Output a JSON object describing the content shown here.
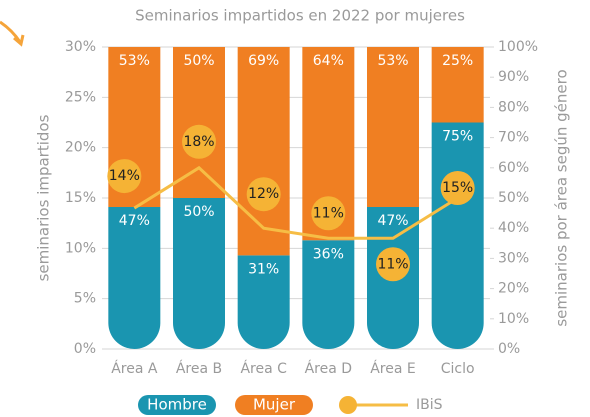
{
  "chart_data": {
    "type": "bar",
    "title": "Seminarios impartidos en 2022 por mujeres",
    "y_label": "seminarios impartidos",
    "y2_label": "seminarios por área según género",
    "categories": [
      "Área A",
      "Área B",
      "Área C",
      "Área D",
      "Área E",
      "Ciclo"
    ],
    "ylim": [
      0,
      30
    ],
    "yticks": [
      {
        "value": 0,
        "label": "0%"
      },
      {
        "value": 5,
        "label": "5%"
      },
      {
        "value": 10,
        "label": "10%"
      },
      {
        "value": 15,
        "label": "15%"
      },
      {
        "value": 20,
        "label": "20%"
      },
      {
        "value": 25,
        "label": "25%"
      },
      {
        "value": 30,
        "label": "30%"
      }
    ],
    "y2lim": [
      0,
      100
    ],
    "y2ticks": [
      {
        "value": 0,
        "label": "0%"
      },
      {
        "value": 10,
        "label": "10%"
      },
      {
        "value": 20,
        "label": "20%"
      },
      {
        "value": 30,
        "label": "30%"
      },
      {
        "value": 40,
        "label": "40%"
      },
      {
        "value": 50,
        "label": "50%"
      },
      {
        "value": 60,
        "label": "60%"
      },
      {
        "value": 70,
        "label": "70%"
      },
      {
        "value": 80,
        "label": "80%"
      },
      {
        "value": 90,
        "label": "90%"
      },
      {
        "value": 100,
        "label": "100%"
      }
    ],
    "grid": true,
    "stacked": true,
    "legend": "bottom",
    "series": [
      {
        "name": "Hombre",
        "color": "#1a95b0",
        "axis": "y2",
        "values": [
          47,
          50,
          31,
          36,
          47,
          75
        ],
        "value_labels": [
          "47%",
          "50%",
          "31%",
          "36%",
          "47%",
          "75%"
        ]
      },
      {
        "name": "Mujer",
        "color": "#f07f22",
        "axis": "y2",
        "values": [
          53,
          50,
          69,
          64,
          53,
          25
        ],
        "value_labels": [
          "53%",
          "50%",
          "69%",
          "64%",
          "53%",
          "25%"
        ]
      },
      {
        "name": "IBiS",
        "color": "#f6bd45",
        "type": "line",
        "values": [
          14,
          18,
          12,
          11,
          11,
          15
        ],
        "value_labels": [
          "14%",
          "18%",
          "12%",
          "11%",
          "11%",
          "15%"
        ]
      }
    ]
  }
}
